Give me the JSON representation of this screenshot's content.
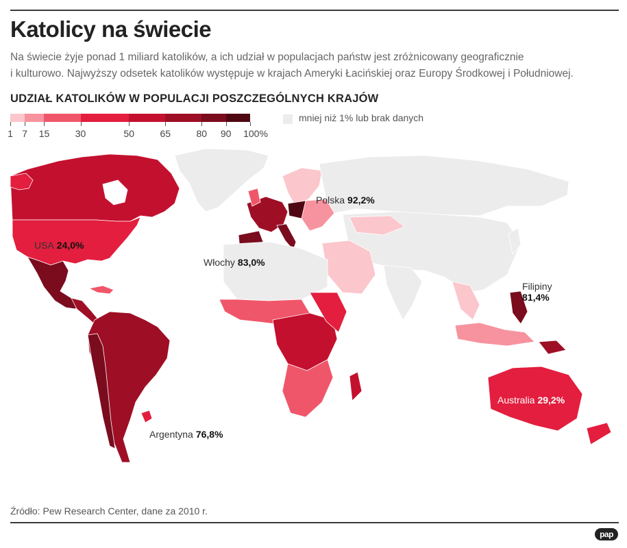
{
  "header": {
    "title": "Katolicy na świecie",
    "intro_line1": "Na świecie żyje ponad 1 miliard katolików, a ich udział w populacjach państw jest zróżnicowany geograficznie",
    "intro_line2": "i kulturowo. Najwyższy odsetek katolików występuje w krajach Ameryki Łacińskiej oraz Europy Środkowej i Południowej.",
    "subtitle": "UDZIAŁ KATOLIKÓW W POPULACJI POSZCZEGÓLNYCH KRAJÓW"
  },
  "legend": {
    "ticks": [
      "1",
      "7",
      "15",
      "30",
      "50",
      "65",
      "80",
      "90",
      "100%"
    ],
    "tick_values": [
      1,
      7,
      15,
      30,
      50,
      65,
      80,
      90,
      100
    ],
    "colors": [
      "#fbc6cc",
      "#f7939e",
      "#f0566a",
      "#e31e3e",
      "#c4102f",
      "#9e0f26",
      "#7a0c1e",
      "#4f0812"
    ],
    "no_data_color": "#ececec",
    "no_data_label": "mniej niż 1% lub brak danych"
  },
  "annotations": {
    "usa": {
      "name": "USA",
      "value": "24,0%"
    },
    "polska": {
      "name": "Polska",
      "value": "92,2%"
    },
    "wlochy": {
      "name": "Włochy",
      "value": "83,0%"
    },
    "filipiny": {
      "name": "Filipiny",
      "value": "81,4%"
    },
    "argentyna": {
      "name": "Argentyna",
      "value": "76,8%"
    },
    "australia": {
      "name": "Australia",
      "value": "29,2%"
    }
  },
  "footer": {
    "source": "Źródło: Pew Research Center, dane za 2010 r.",
    "logo": "pap"
  }
}
